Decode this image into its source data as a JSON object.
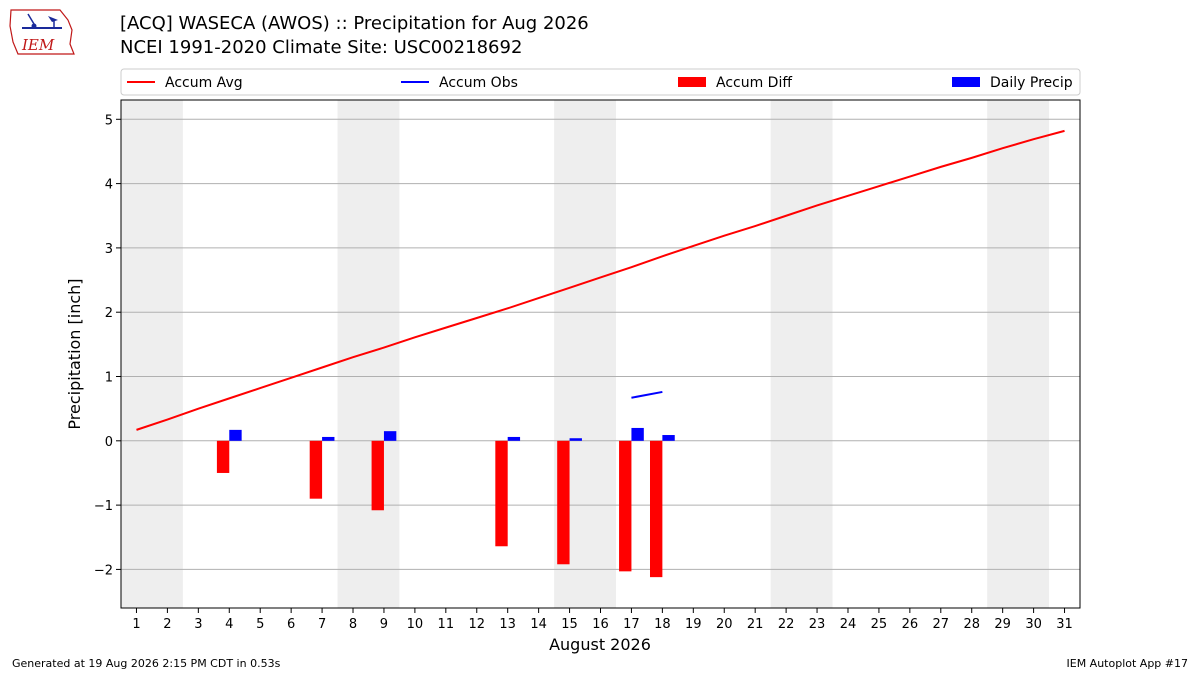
{
  "title": "[ACQ] WASECA (AWOS) :: Precipitation for Aug 2026",
  "subtitle": "NCEI 1991-2020 Climate Site: USC00218692",
  "logo_text": "IEM",
  "footer": {
    "left": "Generated at 19 Aug 2026 2:15 PM CDT in 0.53s",
    "right": "IEM Autoplot App #17"
  },
  "colors": {
    "accum_avg": "#ff0000",
    "accum_obs": "#0000ff",
    "accum_diff": "#ff0000",
    "daily_precip": "#0000ff",
    "weekend_shade": "#eeeeee",
    "grid": "#b0b0b0"
  },
  "chart_data": {
    "type": "bar",
    "xlabel": "August 2026",
    "ylabel": "Precipitation [inch]",
    "xlim": [
      0.5,
      31.5
    ],
    "ylim": [
      -2.6,
      5.3
    ],
    "x_ticks": [
      1,
      2,
      3,
      4,
      5,
      6,
      7,
      8,
      9,
      10,
      11,
      12,
      13,
      14,
      15,
      16,
      17,
      18,
      19,
      20,
      21,
      22,
      23,
      24,
      25,
      26,
      27,
      28,
      29,
      30,
      31
    ],
    "y_ticks": [
      -2,
      -1,
      0,
      1,
      2,
      3,
      4,
      5
    ],
    "y_tick_labels": [
      "−2",
      "−1",
      "0",
      "1",
      "2",
      "3",
      "4",
      "5"
    ],
    "grid": "horizontal",
    "legend": {
      "placement": "top, above plot",
      "entries": [
        "Accum Avg",
        "Accum Obs",
        "Accum Diff",
        "Daily Precip"
      ]
    },
    "weekend_spans": [
      [
        1,
        2
      ],
      [
        8,
        9
      ],
      [
        15,
        16
      ],
      [
        22,
        23
      ],
      [
        29,
        30
      ]
    ],
    "series": [
      {
        "name": "Accum Avg",
        "kind": "line",
        "x": [
          1,
          2,
          3,
          4,
          5,
          6,
          7,
          8,
          9,
          10,
          11,
          12,
          13,
          14,
          15,
          16,
          17,
          18,
          19,
          20,
          21,
          22,
          23,
          24,
          25,
          26,
          27,
          28,
          29,
          30,
          31
        ],
        "values": [
          0.17,
          0.33,
          0.5,
          0.66,
          0.82,
          0.98,
          1.14,
          1.3,
          1.45,
          1.61,
          1.76,
          1.91,
          2.06,
          2.22,
          2.38,
          2.54,
          2.7,
          2.87,
          3.03,
          3.19,
          3.34,
          3.5,
          3.66,
          3.81,
          3.96,
          4.11,
          4.26,
          4.4,
          4.55,
          4.69,
          4.82
        ]
      },
      {
        "name": "Accum Obs",
        "kind": "line",
        "x": [
          17,
          18
        ],
        "values": [
          0.67,
          0.76
        ]
      },
      {
        "name": "Accum Diff",
        "kind": "bar",
        "x": [
          4,
          7,
          9,
          13,
          15,
          17,
          18
        ],
        "values": [
          -0.5,
          -0.9,
          -1.08,
          -1.64,
          -1.92,
          -2.03,
          -2.12
        ]
      },
      {
        "name": "Daily Precip",
        "kind": "bar",
        "x": [
          4,
          7,
          9,
          13,
          15,
          17,
          18
        ],
        "values": [
          0.17,
          0.06,
          0.15,
          0.06,
          0.04,
          0.2,
          0.09
        ]
      }
    ]
  }
}
